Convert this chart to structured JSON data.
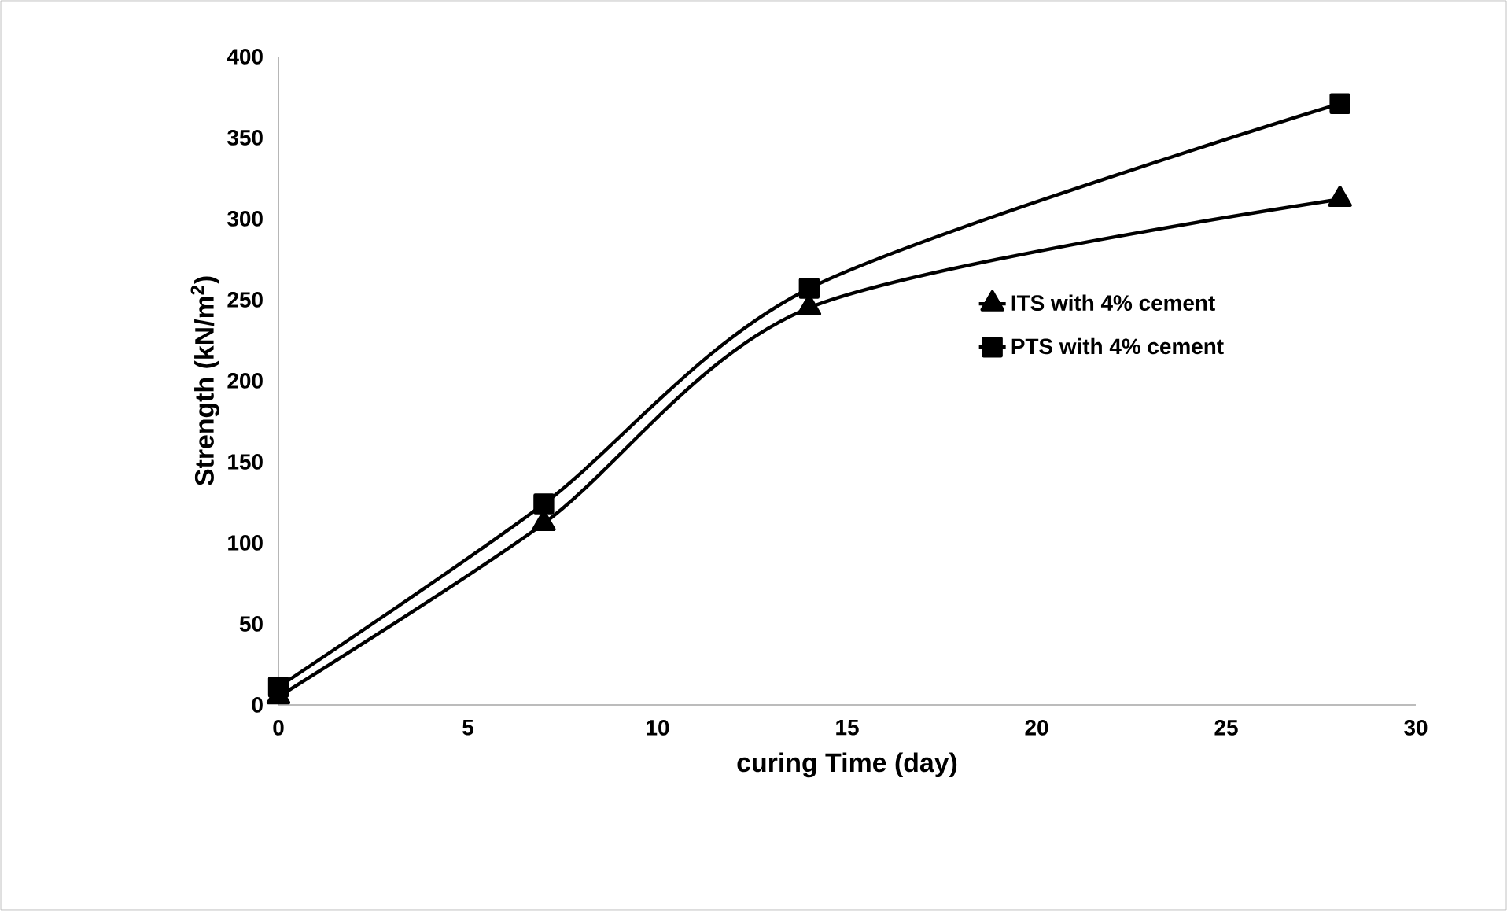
{
  "chart_data": {
    "type": "line",
    "xlabel": "curing Time (day)",
    "ylabel": "Strength (kN/m$^{2}$)",
    "x": [
      0,
      7,
      14,
      28
    ],
    "series": [
      {
        "name": "ITS with 4% cement",
        "color": "#000000",
        "marker": "triangle",
        "values": [
          5,
          112,
          245,
          312
        ]
      },
      {
        "name": "PTS with 4% cement",
        "color": "#000000",
        "marker": "square",
        "values": [
          11,
          124,
          257,
          371
        ]
      }
    ],
    "xlim": [
      0,
      30
    ],
    "xticks": [
      0,
      5,
      10,
      15,
      20,
      25,
      30
    ],
    "ylim": [
      0,
      400
    ],
    "yticks": [
      0,
      50,
      100,
      150,
      200,
      250,
      300,
      350,
      400
    ],
    "grid": false,
    "legend": "right",
    "line_style": "solid"
  }
}
